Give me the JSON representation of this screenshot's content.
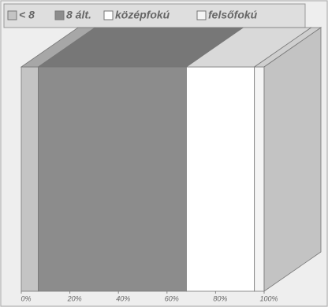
{
  "chart_data": {
    "type": "bar",
    "orientation": "horizontal",
    "stacked": true,
    "three_d": true,
    "categories": [
      null
    ],
    "series": [
      {
        "name": "< 8",
        "color": "#c4c4c4",
        "values": [
          7
        ]
      },
      {
        "name": "8 ált.",
        "color": "#8c8c8c",
        "values": [
          61
        ]
      },
      {
        "name": "középfokú",
        "color": "#ffffff",
        "values": [
          28
        ]
      },
      {
        "name": "felsőfokú",
        "color": "#f4f4f4",
        "values": [
          4
        ]
      }
    ],
    "xlim": [
      0,
      100
    ],
    "xticks": [
      {
        "value": 0,
        "label": "0%"
      },
      {
        "value": 20,
        "label": "20%"
      },
      {
        "value": 40,
        "label": "40%"
      },
      {
        "value": 60,
        "label": "60%"
      },
      {
        "value": 80,
        "label": "80%"
      },
      {
        "value": 100,
        "label": "100%"
      }
    ],
    "legend": "top"
  }
}
